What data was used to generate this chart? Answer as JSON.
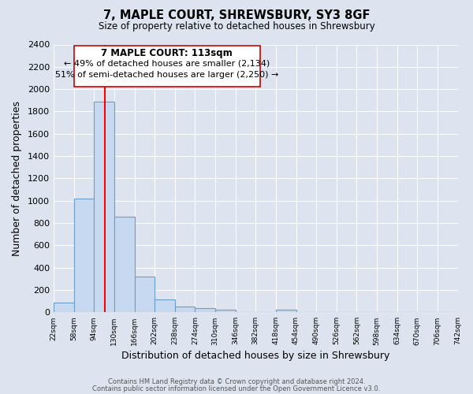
{
  "title": "7, MAPLE COURT, SHREWSBURY, SY3 8GF",
  "subtitle": "Size of property relative to detached houses in Shrewsbury",
  "xlabel": "Distribution of detached houses by size in Shrewsbury",
  "ylabel": "Number of detached properties",
  "bar_edges": [
    22,
    58,
    94,
    130,
    166,
    202,
    238,
    274,
    310,
    346,
    382,
    418,
    454,
    490,
    526,
    562,
    598,
    634,
    670,
    706,
    742
  ],
  "bar_heights": [
    90,
    1020,
    1890,
    860,
    320,
    115,
    50,
    35,
    20,
    0,
    0,
    20,
    0,
    0,
    0,
    0,
    0,
    0,
    0,
    0
  ],
  "bar_color": "#c6d9f0",
  "bar_edge_color": "#6b9ec8",
  "red_line_x": 113,
  "annotation_title": "7 MAPLE COURT: 113sqm",
  "annotation_line1": "← 49% of detached houses are smaller (2,134)",
  "annotation_line2": "51% of semi-detached houses are larger (2,250) →",
  "ylim": [
    0,
    2400
  ],
  "yticks": [
    0,
    200,
    400,
    600,
    800,
    1000,
    1200,
    1400,
    1600,
    1800,
    2000,
    2200,
    2400
  ],
  "fig_bg_color": "#dde4f0",
  "ax_bg_color": "#dde4f0",
  "grid_color": "#ffffff",
  "footer_line1": "Contains HM Land Registry data © Crown copyright and database right 2024.",
  "footer_line2": "Contains public sector information licensed under the Open Government Licence v3.0."
}
